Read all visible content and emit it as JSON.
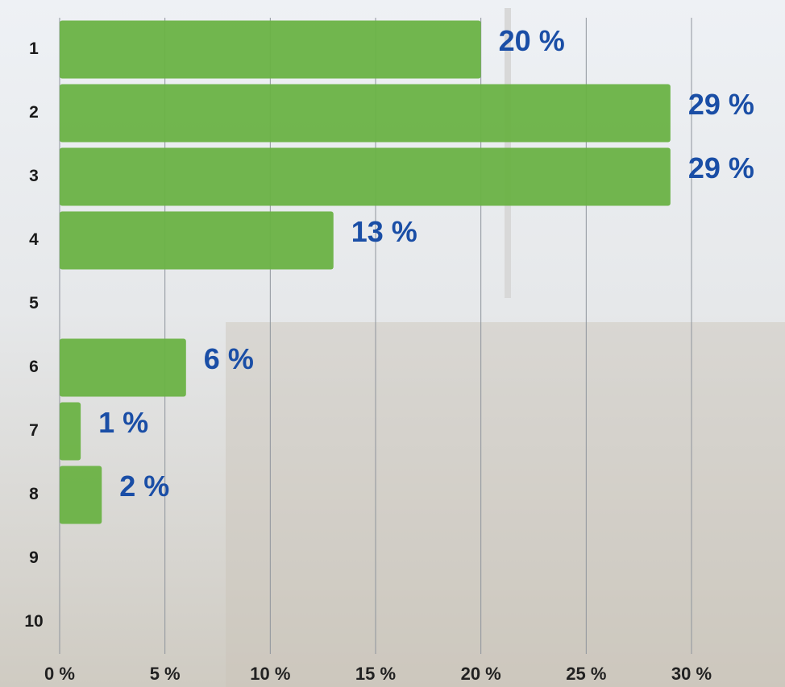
{
  "chart_data": {
    "type": "barh",
    "categories": [
      "1",
      "2",
      "3",
      "4",
      "5",
      "6",
      "7",
      "8",
      "9",
      "10"
    ],
    "values": [
      20,
      29,
      29,
      13,
      null,
      6,
      1,
      2,
      null,
      null
    ],
    "value_labels": [
      "20 %",
      "29 %",
      "29 %",
      "13 %",
      null,
      "6 %",
      "1 %",
      "2 %",
      null,
      null
    ],
    "color": "#6ab245",
    "label_color": "#1a4ea6",
    "xlim": [
      0,
      30
    ],
    "xticks": [
      {
        "value": 0,
        "label": "0 %"
      },
      {
        "value": 5,
        "label": "5 %"
      },
      {
        "value": 10,
        "label": "10 %"
      },
      {
        "value": 15,
        "label": "15 %"
      },
      {
        "value": 20,
        "label": "20 %"
      },
      {
        "value": 25,
        "label": "25 %"
      },
      {
        "value": 30,
        "label": "30 %"
      }
    ],
    "grid": true
  }
}
